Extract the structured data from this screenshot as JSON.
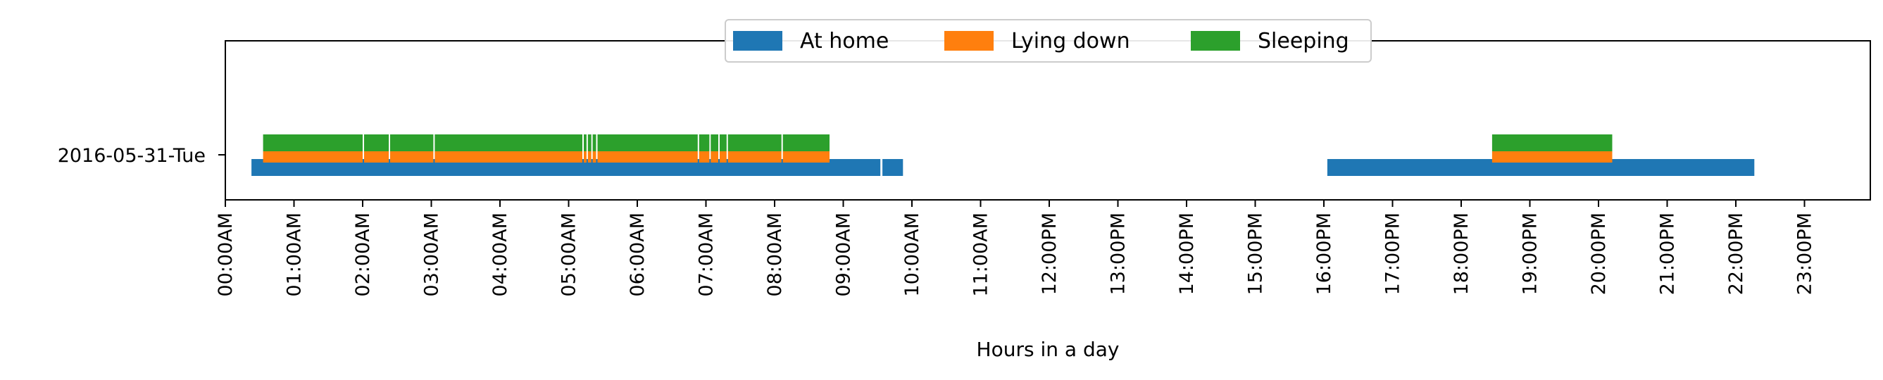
{
  "chart_data": {
    "type": "bar",
    "orientation": "horizontal",
    "title": "",
    "xlabel": "Hours in a day",
    "ylabel": "",
    "xlim": [
      0,
      24
    ],
    "categories": [
      "2016-05-31-Tue"
    ],
    "x_ticks": [
      "00:00AM",
      "01:00AM",
      "02:00AM",
      "03:00AM",
      "04:00AM",
      "05:00AM",
      "06:00AM",
      "07:00AM",
      "08:00AM",
      "09:00AM",
      "10:00AM",
      "11:00AM",
      "12:00PM",
      "13:00PM",
      "14:00PM",
      "15:00PM",
      "16:00PM",
      "17:00PM",
      "18:00PM",
      "19:00PM",
      "20:00PM",
      "21:00PM",
      "22:00PM",
      "23:00PM"
    ],
    "grid": false,
    "legend": {
      "placement": "top-center",
      "entries": [
        "At home",
        "Lying down",
        "Sleeping"
      ]
    },
    "series": [
      {
        "name": "At home",
        "color": "#1f77b4",
        "segments": [
          {
            "start": 0.38,
            "end": 9.54
          },
          {
            "start": 9.57,
            "end": 9.87
          },
          {
            "start": 16.05,
            "end": 22.27
          }
        ]
      },
      {
        "name": "Lying down",
        "color": "#ff7f0e",
        "segments": [
          {
            "start": 0.55,
            "end": 2.0
          },
          {
            "start": 2.02,
            "end": 2.38
          },
          {
            "start": 2.4,
            "end": 3.03
          },
          {
            "start": 3.05,
            "end": 5.2
          },
          {
            "start": 5.22,
            "end": 5.26
          },
          {
            "start": 5.28,
            "end": 5.33
          },
          {
            "start": 5.35,
            "end": 5.4
          },
          {
            "start": 5.42,
            "end": 6.88
          },
          {
            "start": 6.9,
            "end": 7.05
          },
          {
            "start": 7.07,
            "end": 7.18
          },
          {
            "start": 7.2,
            "end": 7.3
          },
          {
            "start": 7.32,
            "end": 8.1
          },
          {
            "start": 8.12,
            "end": 8.8
          },
          {
            "start": 18.45,
            "end": 20.2
          }
        ]
      },
      {
        "name": "Sleeping",
        "color": "#2ca02c",
        "segments": [
          {
            "start": 0.55,
            "end": 2.0
          },
          {
            "start": 2.02,
            "end": 2.38
          },
          {
            "start": 2.4,
            "end": 3.03
          },
          {
            "start": 3.05,
            "end": 5.2
          },
          {
            "start": 5.22,
            "end": 5.26
          },
          {
            "start": 5.28,
            "end": 5.33
          },
          {
            "start": 5.35,
            "end": 5.4
          },
          {
            "start": 5.42,
            "end": 6.88
          },
          {
            "start": 6.9,
            "end": 7.05
          },
          {
            "start": 7.07,
            "end": 7.18
          },
          {
            "start": 7.2,
            "end": 7.3
          },
          {
            "start": 7.32,
            "end": 8.1
          },
          {
            "start": 8.12,
            "end": 8.8
          },
          {
            "start": 18.45,
            "end": 20.2
          }
        ]
      }
    ]
  }
}
